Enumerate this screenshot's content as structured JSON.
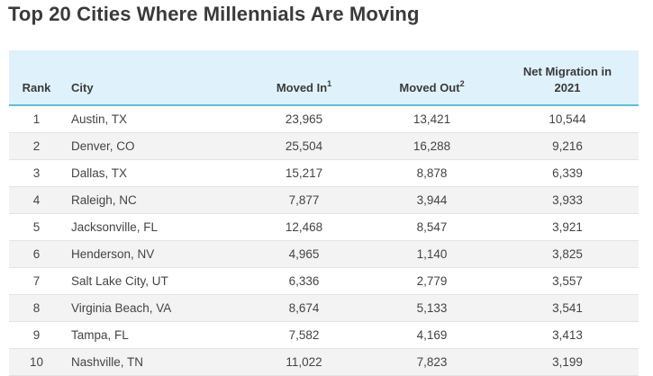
{
  "title": "Top 20 Cities Where Millennials Are Moving",
  "columns": {
    "rank": "Rank",
    "city": "City",
    "moved_in": "Moved In",
    "moved_in_note": "1",
    "moved_out": "Moved Out",
    "moved_out_note": "2",
    "net_line1": "Net Migration in",
    "net_line2": "2021"
  },
  "rows": [
    {
      "rank": "1",
      "city": "Austin, TX",
      "moved_in": "23,965",
      "moved_out": "13,421",
      "net": "10,544"
    },
    {
      "rank": "2",
      "city": "Denver, CO",
      "moved_in": "25,504",
      "moved_out": "16,288",
      "net": "9,216"
    },
    {
      "rank": "3",
      "city": "Dallas, TX",
      "moved_in": "15,217",
      "moved_out": "8,878",
      "net": "6,339"
    },
    {
      "rank": "4",
      "city": "Raleigh, NC",
      "moved_in": "7,877",
      "moved_out": "3,944",
      "net": "3,933"
    },
    {
      "rank": "5",
      "city": "Jacksonville, FL",
      "moved_in": "12,468",
      "moved_out": "8,547",
      "net": "3,921"
    },
    {
      "rank": "6",
      "city": "Henderson, NV",
      "moved_in": "4,965",
      "moved_out": "1,140",
      "net": "3,825"
    },
    {
      "rank": "7",
      "city": "Salt Lake City, UT",
      "moved_in": "6,336",
      "moved_out": "2,779",
      "net": "3,557"
    },
    {
      "rank": "8",
      "city": "Virginia Beach, VA",
      "moved_in": "8,674",
      "moved_out": "5,133",
      "net": "3,541"
    },
    {
      "rank": "9",
      "city": "Tampa, FL",
      "moved_in": "7,582",
      "moved_out": "4,169",
      "net": "3,413"
    },
    {
      "rank": "10",
      "city": "Nashville, TN",
      "moved_in": "11,022",
      "moved_out": "7,823",
      "net": "3,199"
    }
  ]
}
